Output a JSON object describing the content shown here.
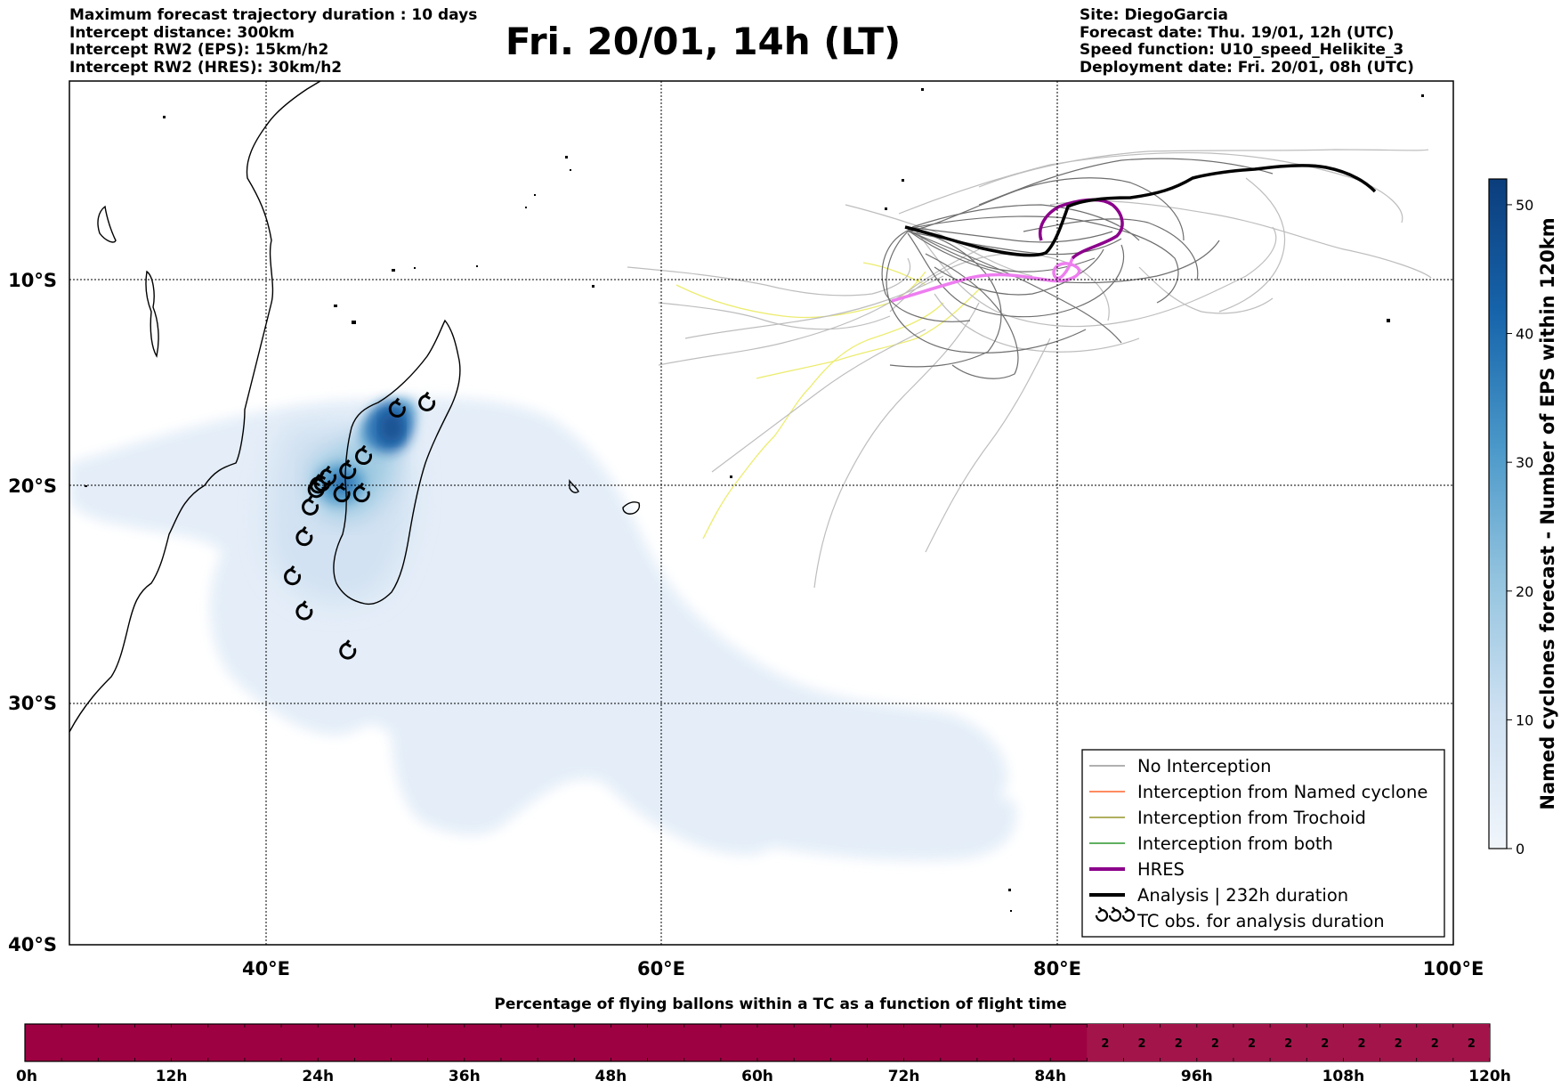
{
  "header_left": [
    "Maximum forecast trajectory duration : 10 days",
    "Intercept distance: 300km",
    "Intercept RW2 (EPS):  15km/h2",
    "Intercept RW2 (HRES): 30km/h2"
  ],
  "title": "Fri. 20/01, 14h (LT)",
  "header_right": [
    "Site: DiegoGarcia",
    "Forecast date: Thu. 19/01, 12h (UTC)",
    "Speed function: U10_speed_Helikite_3",
    "Deployment date: Fri. 20/01, 08h (UTC)"
  ],
  "map": {
    "lon_labels": [
      "40°E",
      "60°E",
      "80°E",
      "100°E"
    ],
    "lat_labels": [
      "10°S",
      "20°S",
      "30°S",
      "40°S"
    ],
    "lon_range": [
      30,
      100
    ],
    "lat_range": [
      -40,
      1
    ],
    "gridlines": true
  },
  "legend": {
    "entries": [
      {
        "label": "No Interception",
        "color": "#808080",
        "style": "thin-line"
      },
      {
        "label": "Interception from Named cyclone",
        "color": "#ff4500",
        "style": "thin-line"
      },
      {
        "label": "Interception from Trochoid",
        "color": "#808000",
        "style": "thin-line"
      },
      {
        "label": "Interception from both",
        "color": "#008000",
        "style": "thin-line"
      },
      {
        "label": "HRES",
        "color": "#8b008b",
        "style": "thick-line"
      },
      {
        "label": "Analysis | 232h duration",
        "color": "#000000",
        "style": "thick-line"
      },
      {
        "label": "TC obs. for analysis duration",
        "color": "#000000",
        "style": "cyclone-symbols"
      }
    ]
  },
  "colorbar": {
    "label": "Named cyclones forecast - Number of EPS within 120km",
    "ticks": [
      "0",
      "10",
      "20",
      "30",
      "40",
      "50"
    ],
    "range": [
      0,
      52
    ],
    "colors": [
      "#f0f5fb",
      "#0b3d7c"
    ]
  },
  "timeline": {
    "title": "Percentage of flying ballons within a TC as a function of flight time",
    "ticks": [
      "0h",
      "12h",
      "24h",
      "36h",
      "48h",
      "60h",
      "72h",
      "84h",
      "96h",
      "108h",
      "120h"
    ],
    "segment_values": [
      "2",
      "2",
      "2",
      "2",
      "2",
      "2",
      "2",
      "2",
      "2",
      "2",
      "2"
    ],
    "segment_start_hour": 87,
    "main_color": "#9e0142",
    "segment_color": "#a3154a"
  },
  "tc_observations": [
    {
      "lon": 46.6,
      "lat": -16.3
    },
    {
      "lon": 48.1,
      "lat": -16.0
    },
    {
      "lon": 44.9,
      "lat": -18.6
    },
    {
      "lon": 44.1,
      "lat": -19.3
    },
    {
      "lon": 43.1,
      "lat": -19.6
    },
    {
      "lon": 42.8,
      "lat": -19.9
    },
    {
      "lon": 42.6,
      "lat": -20.0
    },
    {
      "lon": 42.5,
      "lat": -20.2
    },
    {
      "lon": 43.8,
      "lat": -20.4
    },
    {
      "lon": 44.8,
      "lat": -20.4
    },
    {
      "lon": 42.2,
      "lat": -21.0
    },
    {
      "lon": 41.9,
      "lat": -22.4
    },
    {
      "lon": 41.3,
      "lat": -24.2
    },
    {
      "lon": 41.9,
      "lat": -25.8
    },
    {
      "lon": 44.1,
      "lat": -27.6
    }
  ]
}
